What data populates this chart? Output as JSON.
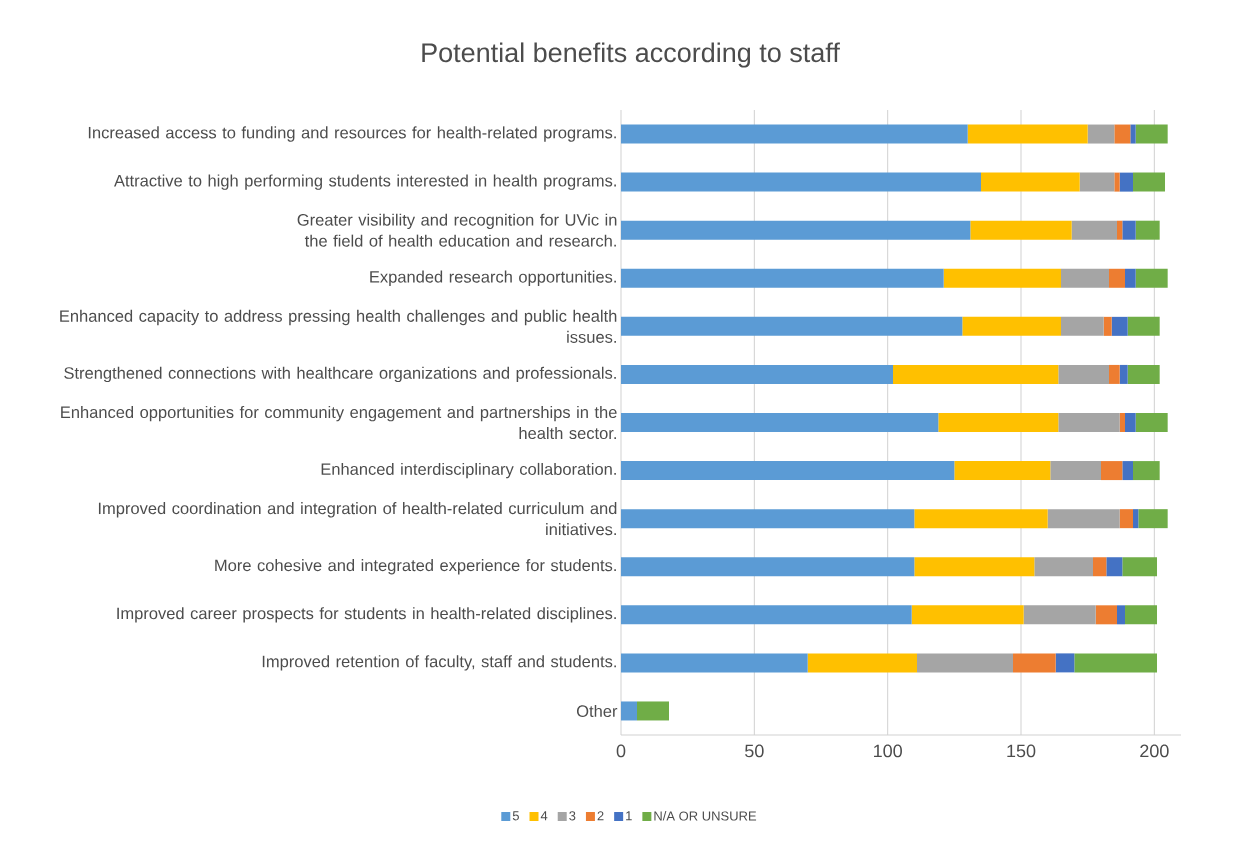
{
  "chart_data": {
    "type": "bar",
    "orientation": "horizontal",
    "stacked": true,
    "title": "Potential benefits according to staff",
    "categories": [
      "Increased access to funding and resources for health-related programs.",
      "Attractive to high performing students interested in health programs.",
      "Greater visibility and recognition for UVic in the field of health education and research.",
      "Expanded research opportunities.",
      "Enhanced capacity to address pressing health challenges and public health issues.",
      "Strengthened connections with healthcare organizations and professionals.",
      "Enhanced opportunities for community engagement and partnerships in the health sector.",
      "Enhanced interdisciplinary collaboration.",
      "Improved coordination and integration of health-related curriculum and initiatives.",
      "More cohesive and integrated experience for students.",
      "Improved career prospects for students in health-related disciplines.",
      "Improved retention of faculty, staff and students.",
      "Other"
    ],
    "series": [
      {
        "name": "5",
        "color": "#5b9bd5",
        "values": [
          130,
          135,
          131,
          121,
          128,
          102,
          119,
          125,
          110,
          110,
          109,
          70,
          6
        ]
      },
      {
        "name": "4",
        "color": "#ffc000",
        "values": [
          45,
          37,
          38,
          44,
          37,
          62,
          45,
          36,
          50,
          45,
          42,
          41,
          null
        ]
      },
      {
        "name": "3",
        "color": "#a5a5a5",
        "values": [
          10,
          13,
          17,
          18,
          16,
          19,
          23,
          19,
          27,
          22,
          27,
          36,
          null
        ]
      },
      {
        "name": "2",
        "color": "#ed7d31",
        "values": [
          6,
          2,
          2,
          6,
          3,
          4,
          2,
          8,
          5,
          5,
          8,
          16,
          null
        ]
      },
      {
        "name": "1",
        "color": "#4472c4",
        "values": [
          2,
          5,
          5,
          4,
          6,
          3,
          4,
          4,
          2,
          6,
          3,
          7,
          null
        ]
      },
      {
        "name": "N/A OR UNSURE",
        "color": "#70ad47",
        "values": [
          12,
          12,
          9,
          12,
          12,
          12,
          12,
          10,
          11,
          13,
          12,
          31,
          12
        ]
      }
    ],
    "xlim": [
      0,
      210
    ],
    "xticks": [
      0,
      50,
      100,
      150,
      200
    ],
    "grid": "x",
    "legend": "bottom"
  }
}
